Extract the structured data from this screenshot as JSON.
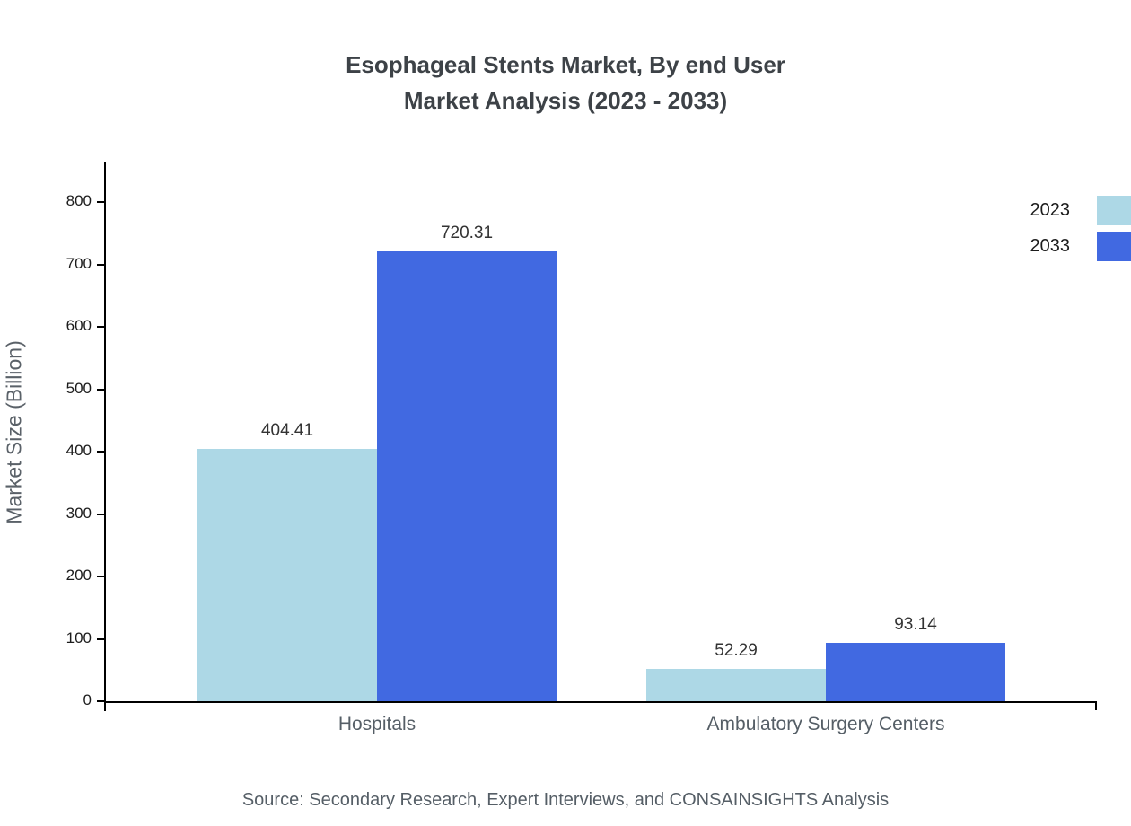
{
  "title": {
    "line1": "Esophageal Stents Market, By end User",
    "line2": "Market Analysis (2023 - 2033)"
  },
  "source": "Source: Secondary Research, Expert Interviews, and CONSAINSIGHTS Analysis",
  "chart_data": {
    "type": "bar",
    "title": "Esophageal Stents Market, By end User Market Analysis (2023 - 2033)",
    "xlabel": "",
    "ylabel": "Market Size (Billion)",
    "categories": [
      "Hospitals",
      "Ambulatory Surgery Centers"
    ],
    "series": [
      {
        "name": "2023",
        "color": "#add8e6",
        "values": [
          404.41,
          52.29
        ]
      },
      {
        "name": "2033",
        "color": "#4169e1",
        "values": [
          720.31,
          93.14
        ]
      }
    ],
    "ylim": [
      0,
      860
    ],
    "yticks": [
      0,
      100,
      200,
      300,
      400,
      500,
      600,
      700,
      800
    ],
    "grid": false,
    "legend_position": "top-right"
  }
}
